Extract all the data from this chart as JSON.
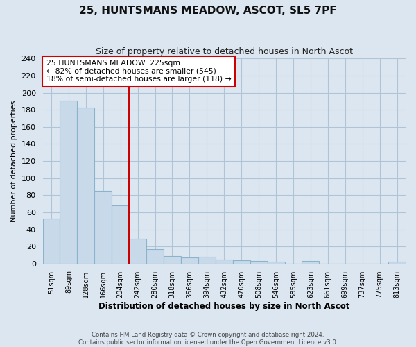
{
  "title": "25, HUNTSMANS MEADOW, ASCOT, SL5 7PF",
  "subtitle": "Size of property relative to detached houses in North Ascot",
  "xlabel": "Distribution of detached houses by size in North Ascot",
  "ylabel": "Number of detached properties",
  "footnote1": "Contains HM Land Registry data © Crown copyright and database right 2024.",
  "footnote2": "Contains public sector information licensed under the Open Government Licence v3.0.",
  "bar_labels": [
    "51sqm",
    "89sqm",
    "128sqm",
    "166sqm",
    "204sqm",
    "242sqm",
    "280sqm",
    "318sqm",
    "356sqm",
    "394sqm",
    "432sqm",
    "470sqm",
    "508sqm",
    "546sqm",
    "585sqm",
    "623sqm",
    "661sqm",
    "699sqm",
    "737sqm",
    "775sqm",
    "813sqm"
  ],
  "bar_values": [
    53,
    191,
    183,
    85,
    68,
    29,
    17,
    9,
    7,
    8,
    5,
    4,
    3,
    2,
    0,
    3,
    0,
    0,
    0,
    0,
    2
  ],
  "bar_color": "#c8daea",
  "bar_edge_color": "#8ab4cc",
  "vline_color": "#cc0000",
  "annotation_line1": "25 HUNTSMANS MEADOW: 225sqm",
  "annotation_line2": "← 82% of detached houses are smaller (545)",
  "annotation_line3": "18% of semi-detached houses are larger (118) →",
  "ylim": [
    0,
    240
  ],
  "yticks": [
    0,
    20,
    40,
    60,
    80,
    100,
    120,
    140,
    160,
    180,
    200,
    220,
    240
  ],
  "background_color": "#dce6f0",
  "plot_bg_color": "#dce6f0",
  "grid_color": "#b0c4d8"
}
